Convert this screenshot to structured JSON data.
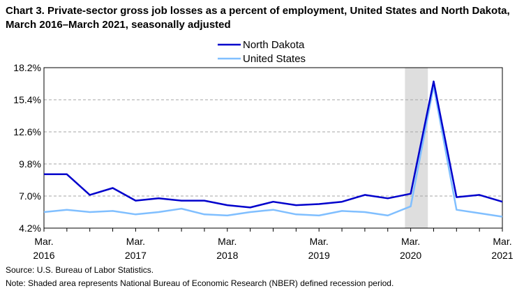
{
  "chart_data": {
    "type": "line",
    "title": "Chart 3. Private-sector gross job losses as a percent of employment, United States and North Dakota, March 2016–March 2021, seasonally adjusted",
    "xlabel": "",
    "ylabel": "",
    "ylim": [
      4.2,
      18.2
    ],
    "yticks": [
      "4.2%",
      "7.0%",
      "9.8%",
      "12.6%",
      "15.4%",
      "18.2%"
    ],
    "ytick_values": [
      4.2,
      7.0,
      9.8,
      12.6,
      15.4,
      18.2
    ],
    "xtick_labels": [
      {
        "line1": "Mar.",
        "line2": "2016",
        "index": 0
      },
      {
        "line1": "Mar.",
        "line2": "2017",
        "index": 4
      },
      {
        "line1": "Mar.",
        "line2": "2018",
        "index": 8
      },
      {
        "line1": "Mar.",
        "line2": "2019",
        "index": 12
      },
      {
        "line1": "Mar.",
        "line2": "2020",
        "index": 16
      },
      {
        "line1": "Mar.",
        "line2": "2021",
        "index": 20
      }
    ],
    "x": [
      "Mar. 2016",
      "Jun. 2016",
      "Sep. 2016",
      "Dec. 2016",
      "Mar. 2017",
      "Jun. 2017",
      "Sep. 2017",
      "Dec. 2017",
      "Mar. 2018",
      "Jun. 2018",
      "Sep. 2018",
      "Dec. 2018",
      "Mar. 2019",
      "Jun. 2019",
      "Sep. 2019",
      "Dec. 2019",
      "Mar. 2020",
      "Jun. 2020",
      "Sep. 2020",
      "Dec. 2020",
      "Mar. 2021"
    ],
    "series": [
      {
        "name": "North Dakota",
        "color": "#0000cc",
        "values": [
          8.9,
          8.9,
          7.1,
          7.7,
          6.6,
          6.8,
          6.6,
          6.6,
          6.2,
          6.0,
          6.5,
          6.2,
          6.3,
          6.5,
          7.1,
          6.8,
          7.2,
          17.0,
          6.9,
          7.1,
          6.5
        ]
      },
      {
        "name": "United States",
        "color": "#80bfff",
        "values": [
          5.6,
          5.8,
          5.6,
          5.7,
          5.4,
          5.6,
          5.9,
          5.4,
          5.3,
          5.6,
          5.8,
          5.4,
          5.3,
          5.7,
          5.6,
          5.3,
          6.1,
          16.6,
          5.8,
          5.5,
          5.2
        ]
      }
    ],
    "recession_shading": {
      "start_index": 15.75,
      "end_index": 16.75
    },
    "legend_position": "top-center",
    "grid": true
  },
  "footer": {
    "source": "Source: U.S. Bureau of Labor Statistics.",
    "note": "Note: Shaded area represents National Bureau of Economic Research (NBER) defined recession period."
  }
}
